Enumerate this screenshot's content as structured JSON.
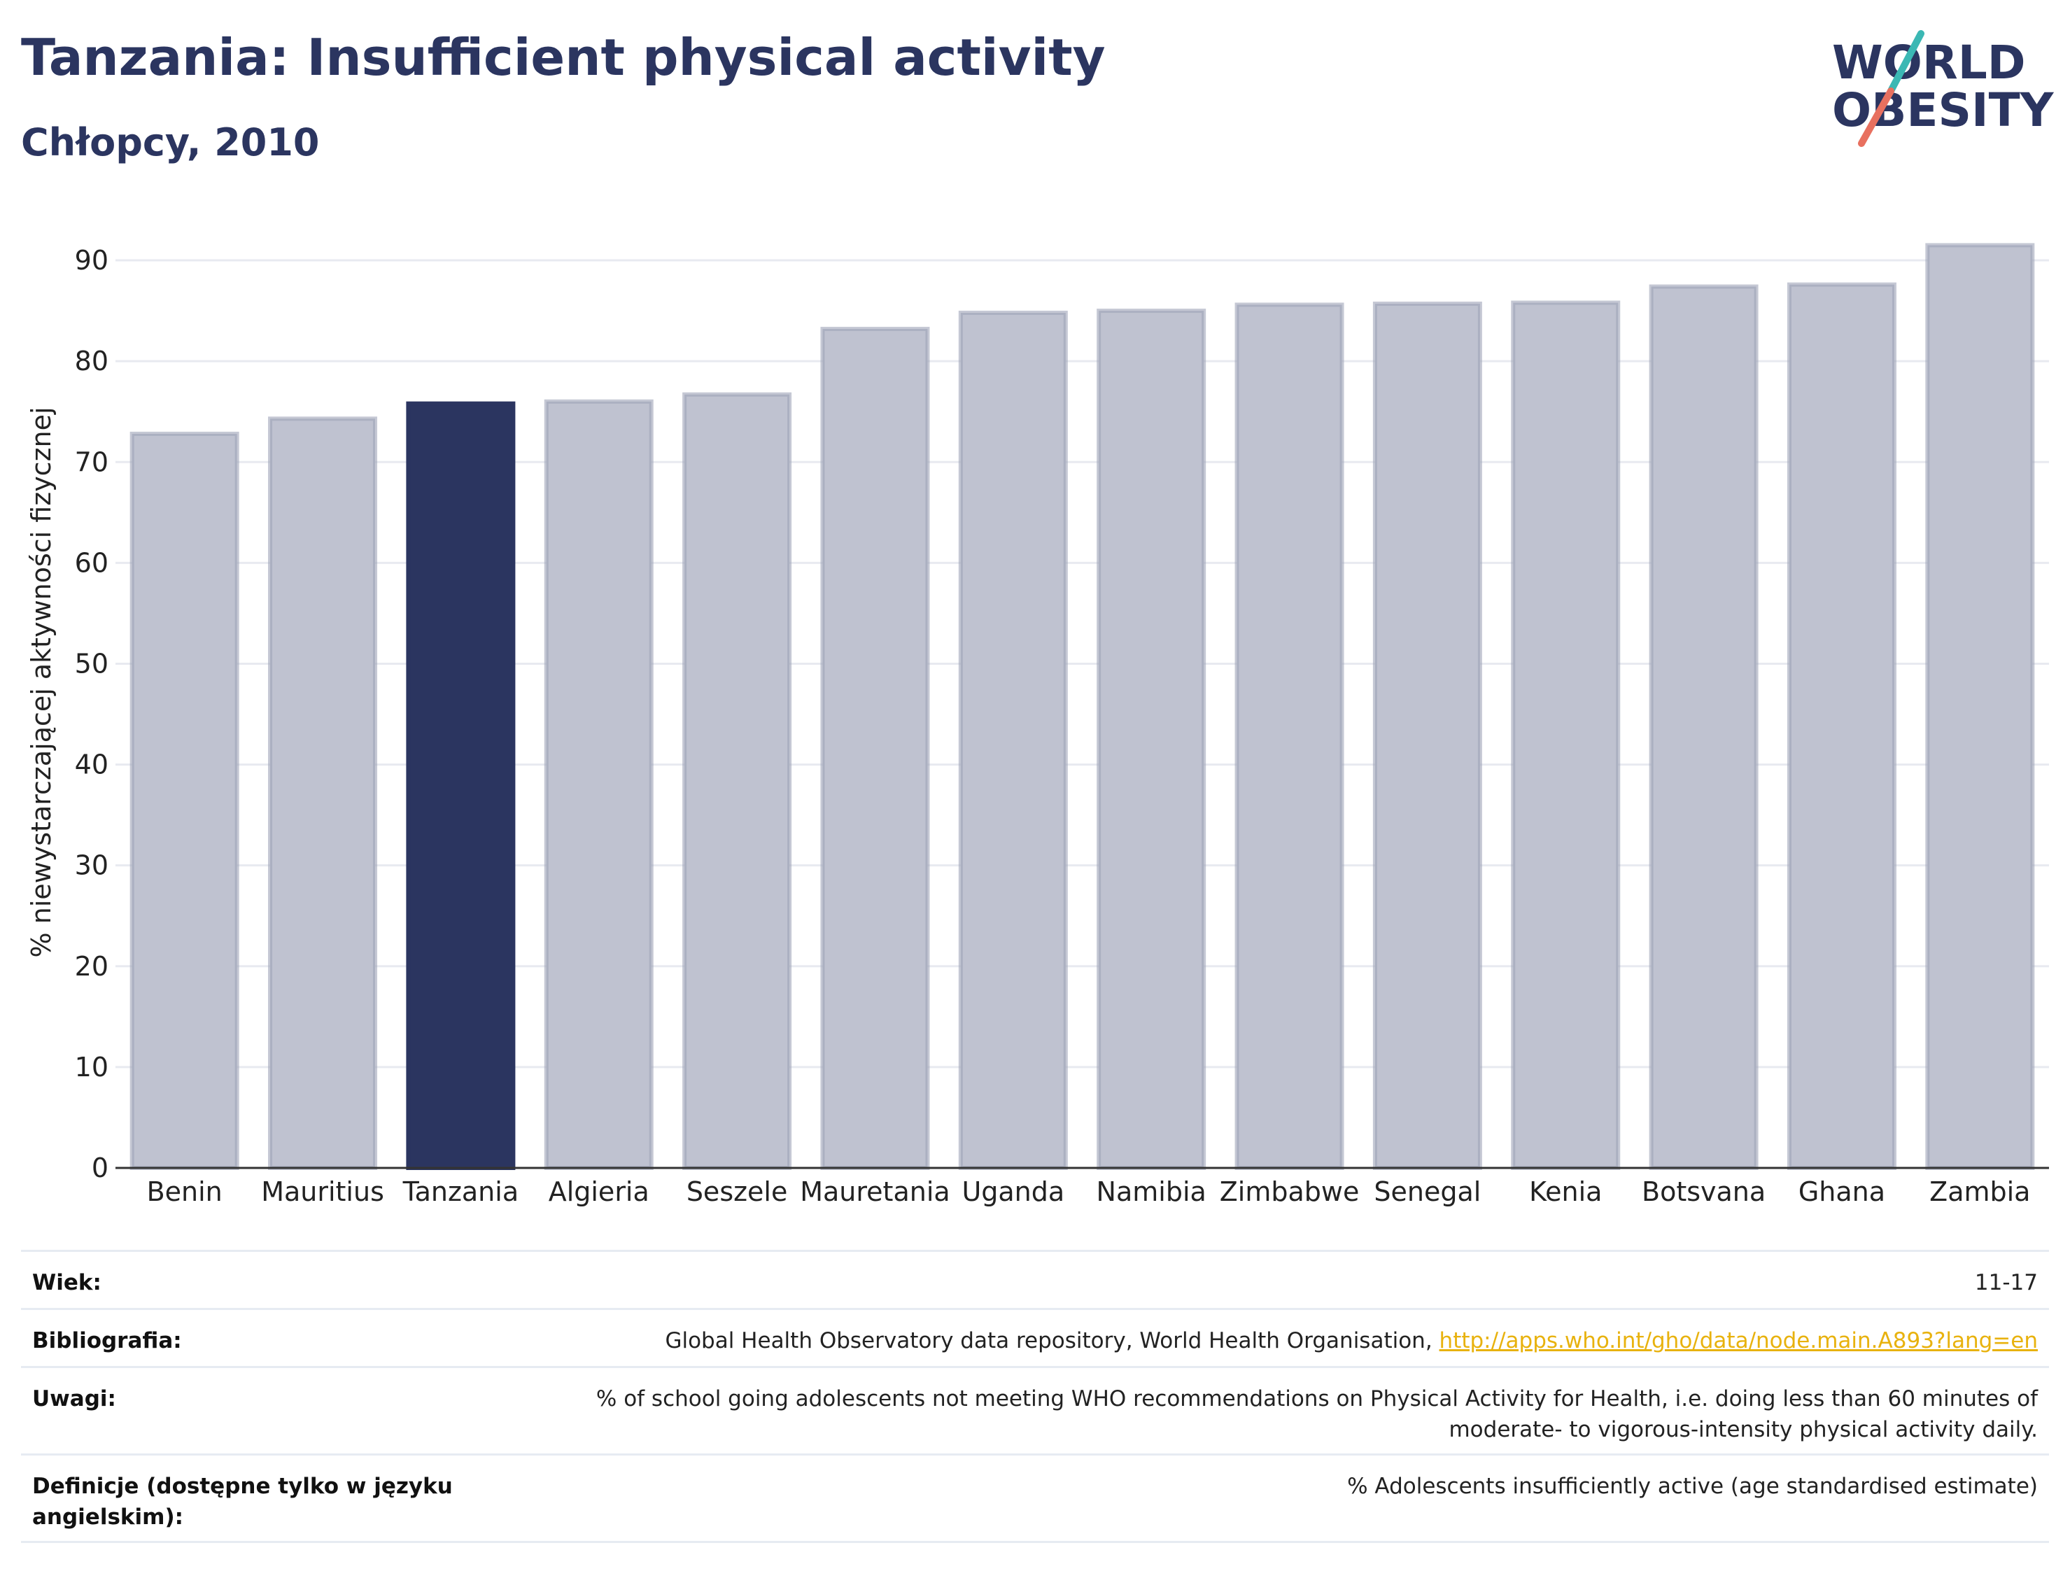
{
  "header": {
    "title": "Tanzania: Insufficient physical activity",
    "subtitle": "Chłopcy, 2010"
  },
  "logo": {
    "line1": "WORLD",
    "line2": "OBESITY",
    "colors": {
      "text": "#2b3560",
      "slash_teal": "#3bb8b4",
      "slash_coral": "#e8705f"
    }
  },
  "chart_data": {
    "type": "bar",
    "categories": [
      "Benin",
      "Mauritius",
      "Tanzania",
      "Algieria",
      "Seszele",
      "Mauretania",
      "Uganda",
      "Namibia",
      "Zimbabwe",
      "Senegal",
      "Kenia",
      "Botsvana",
      "Ghana",
      "Zambia"
    ],
    "values": [
      72.8,
      74.3,
      75.8,
      76.0,
      76.7,
      83.2,
      84.8,
      85.0,
      85.6,
      85.7,
      85.8,
      87.4,
      87.6,
      91.5
    ],
    "highlight": "Tanzania",
    "ylabel": "% niewystarczającej aktywności fizycznej",
    "xlabel": "",
    "ylim": [
      0,
      95
    ],
    "yticks": [
      0,
      10,
      20,
      30,
      40,
      50,
      60,
      70,
      80,
      90
    ],
    "grid": true,
    "colors": {
      "bar": "#bfc2d0",
      "bar_border": "#9ea3b8",
      "highlight": "#2b3560",
      "grid": "#e8eaf0",
      "axis": "#333333"
    }
  },
  "meta": [
    {
      "label": "Wiek:",
      "value": "11-17"
    },
    {
      "label": "Bibliografia:",
      "value": "Global Health Observatory data repository, World Health Organisation, ",
      "link": "http://apps.who.int/gho/data/node.main.A893?lang=en"
    },
    {
      "label": "Uwagi:",
      "value": "% of school going adolescents not meeting WHO recommendations on Physical Activity for Health, i.e. doing less than 60 minutes of moderate- to vigorous-intensity physical activity daily."
    },
    {
      "label": "Definicje (dostępne tylko w języku angielskim):",
      "value": "% Adolescents insufficiently active (age standardised estimate)"
    }
  ]
}
